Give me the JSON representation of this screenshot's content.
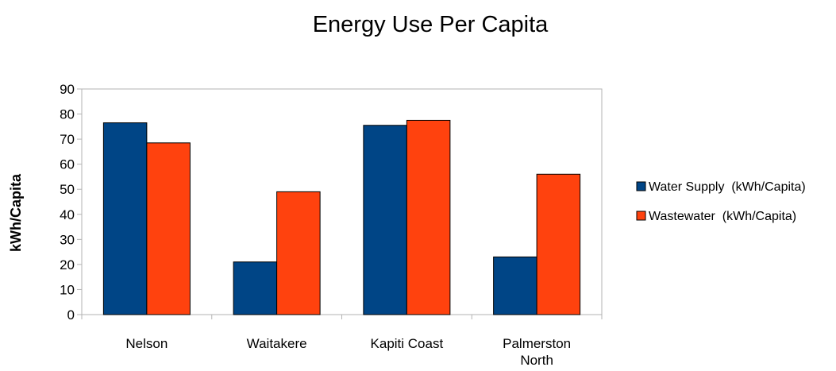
{
  "chart_data": {
    "type": "bar",
    "title": "Energy Use Per Capita",
    "xlabel": "",
    "ylabel": "kWh/Capita",
    "categories": [
      "Nelson",
      "Waitakere",
      "Kapiti Coast",
      "Palmerston North"
    ],
    "ylim": [
      0,
      90
    ],
    "yticks": [
      0,
      10,
      20,
      30,
      40,
      50,
      60,
      70,
      80,
      90
    ],
    "grid": false,
    "legend_position": "right",
    "series": [
      {
        "name": "Water Supply  (kWh/Capita)",
        "color": "#004586",
        "values": [
          76.5,
          21,
          75.5,
          23
        ]
      },
      {
        "name": "Wastewater  (kWh/Capita)",
        "color": "#ff420e",
        "values": [
          68.5,
          49,
          77.5,
          56
        ]
      }
    ]
  }
}
